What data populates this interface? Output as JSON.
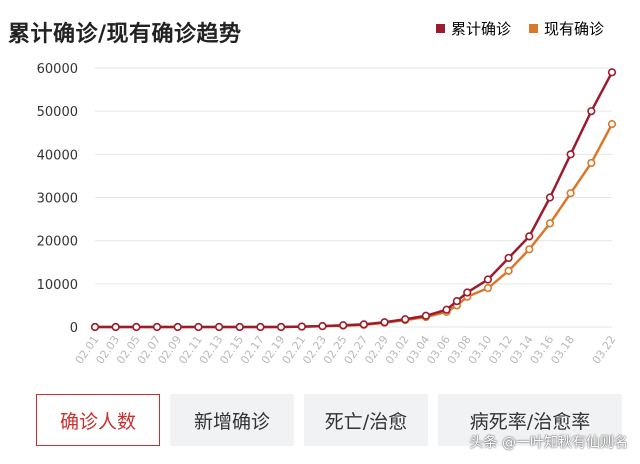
{
  "header": {
    "title": "累计确诊/现有确诊趋势"
  },
  "colors": {
    "cumulative": "#9b1c2e",
    "current": "#d9782b",
    "grid": "#e6e6e6",
    "tick": "#b8b8b8",
    "tab_active": "#c93030"
  },
  "tabs": [
    {
      "label": "确诊人数",
      "active": true
    },
    {
      "label": "新增确诊",
      "active": false
    },
    {
      "label": "死亡/治愈",
      "active": false
    },
    {
      "label": "病死率/治愈率",
      "active": false
    }
  ],
  "watermark": "头条 @一叶知秋有仙则名",
  "chart_data": {
    "type": "line",
    "title": "累计确诊/现有确诊趋势",
    "xlabel": "",
    "ylabel": "",
    "ylim": [
      0,
      60000
    ],
    "yticks": [
      0,
      10000,
      20000,
      30000,
      40000,
      50000,
      60000
    ],
    "x_tick_labels": [
      "02.01",
      "02.03",
      "02.05",
      "02.07",
      "02.09",
      "02.11",
      "02.13",
      "02.15",
      "02.17",
      "02.19",
      "02.21",
      "02.23",
      "02.25",
      "02.27",
      "02.29",
      "03.02",
      "03.04",
      "03.06",
      "03.08",
      "03.10",
      "03.12",
      "03.14",
      "03.16",
      "03.18",
      "03.22"
    ],
    "legend": "top-right",
    "grid": true,
    "series": [
      {
        "name": "累计确诊",
        "points": [
          [
            "02.01",
            0
          ],
          [
            "02.03",
            0
          ],
          [
            "02.05",
            0
          ],
          [
            "02.07",
            0
          ],
          [
            "02.09",
            0
          ],
          [
            "02.11",
            0
          ],
          [
            "02.13",
            0
          ],
          [
            "02.15",
            0
          ],
          [
            "02.17",
            0
          ],
          [
            "02.19",
            0
          ],
          [
            "02.21",
            100
          ],
          [
            "02.23",
            200
          ],
          [
            "02.25",
            400
          ],
          [
            "02.27",
            600
          ],
          [
            "02.29",
            1100
          ],
          [
            "03.02",
            1800
          ],
          [
            "03.04",
            2600
          ],
          [
            "03.06",
            4000
          ],
          [
            "03.07",
            6000
          ],
          [
            "03.08",
            8000
          ],
          [
            "03.10",
            11000
          ],
          [
            "03.12",
            16000
          ],
          [
            "03.14",
            21000
          ],
          [
            "03.16",
            30000
          ],
          [
            "03.18",
            40000
          ],
          [
            "03.20",
            50000
          ],
          [
            "03.22",
            59000
          ]
        ]
      },
      {
        "name": "现有确诊",
        "points": [
          [
            "02.01",
            0
          ],
          [
            "02.03",
            0
          ],
          [
            "02.05",
            0
          ],
          [
            "02.07",
            0
          ],
          [
            "02.09",
            0
          ],
          [
            "02.11",
            0
          ],
          [
            "02.13",
            0
          ],
          [
            "02.15",
            0
          ],
          [
            "02.17",
            0
          ],
          [
            "02.19",
            0
          ],
          [
            "02.21",
            100
          ],
          [
            "02.23",
            200
          ],
          [
            "02.25",
            300
          ],
          [
            "02.27",
            500
          ],
          [
            "02.29",
            1000
          ],
          [
            "03.02",
            1600
          ],
          [
            "03.04",
            2300
          ],
          [
            "03.06",
            3500
          ],
          [
            "03.07",
            5000
          ],
          [
            "03.08",
            7000
          ],
          [
            "03.10",
            9000
          ],
          [
            "03.12",
            13000
          ],
          [
            "03.14",
            18000
          ],
          [
            "03.16",
            24000
          ],
          [
            "03.18",
            31000
          ],
          [
            "03.20",
            38000
          ],
          [
            "03.22",
            47000
          ]
        ]
      }
    ]
  }
}
